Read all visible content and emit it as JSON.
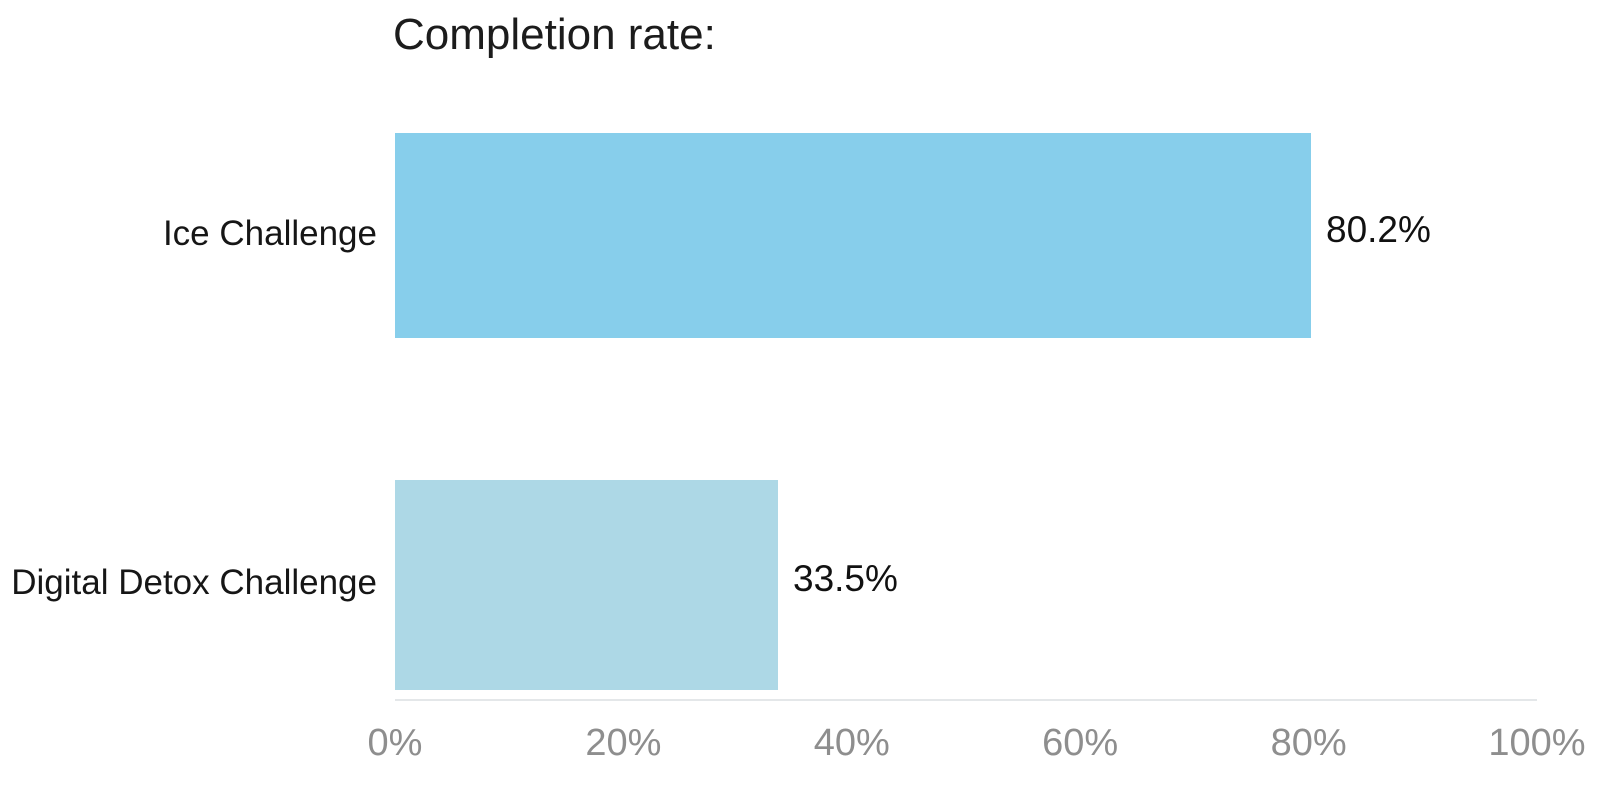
{
  "chart_data": {
    "type": "bar",
    "orientation": "horizontal",
    "title": "Completion rate:",
    "categories": [
      "Ice Challenge",
      "Digital Detox Challenge"
    ],
    "values": [
      80.2,
      33.5
    ],
    "value_labels": [
      "80.2%",
      "33.5%"
    ],
    "bar_colors": [
      "#87CEEB",
      "#ADD8E6"
    ],
    "xlabel": "",
    "ylabel": "",
    "xlim": [
      0,
      100
    ],
    "x_tick_values": [
      0,
      20,
      40,
      60,
      80,
      100
    ],
    "x_tick_labels": [
      "0%",
      "20%",
      "40%",
      "60%",
      "80%",
      "100%"
    ],
    "grid": "off",
    "legend": "none",
    "colors": {
      "title_text": "#1c1c1c",
      "label_text": "#161616",
      "value_text": "#111111",
      "tick_text": "#8e8e8e",
      "axis_line": "#e4e7e9",
      "background": "#ffffff"
    }
  }
}
